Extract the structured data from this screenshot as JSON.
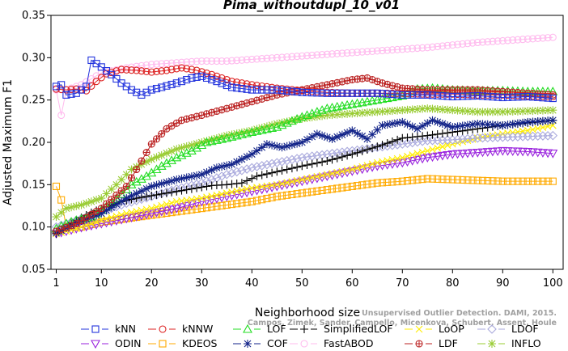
{
  "chart_data": {
    "type": "line",
    "title": "Pima_withoutdupl_10_v01",
    "xlabel": "Neighborhood size",
    "ylabel": "Adjusted Maximum F1",
    "xlim": [
      0,
      101
    ],
    "ylim": [
      0.05,
      0.35
    ],
    "xticks": [
      1,
      10,
      20,
      30,
      40,
      50,
      60,
      70,
      80,
      90,
      100
    ],
    "yticks": [
      0.05,
      0.1,
      0.15,
      0.2,
      0.25,
      0.3,
      0.35
    ],
    "ytick_labels": [
      "0.05",
      "0.10",
      "0.15",
      "0.20",
      "0.25",
      "0.30",
      "0.35"
    ],
    "grid": false,
    "legend_position": "bottom",
    "series": [
      {
        "name": "kNN",
        "color": "#2233dd",
        "marker": "square",
        "points": [
          [
            1,
            0.266
          ],
          [
            2,
            0.268
          ],
          [
            3,
            0.256
          ],
          [
            5,
            0.258
          ],
          [
            7,
            0.266
          ],
          [
            8,
            0.297
          ],
          [
            10,
            0.289
          ],
          [
            12,
            0.28
          ],
          [
            14,
            0.27
          ],
          [
            16,
            0.262
          ],
          [
            18,
            0.256
          ],
          [
            20,
            0.262
          ],
          [
            22,
            0.265
          ],
          [
            25,
            0.27
          ],
          [
            28,
            0.276
          ],
          [
            30,
            0.278
          ],
          [
            33,
            0.272
          ],
          [
            36,
            0.265
          ],
          [
            40,
            0.262
          ],
          [
            45,
            0.262
          ],
          [
            50,
            0.259
          ],
          [
            55,
            0.258
          ],
          [
            60,
            0.258
          ],
          [
            65,
            0.258
          ],
          [
            70,
            0.256
          ],
          [
            75,
            0.256
          ],
          [
            80,
            0.254
          ],
          [
            85,
            0.255
          ],
          [
            90,
            0.253
          ],
          [
            95,
            0.254
          ],
          [
            100,
            0.252
          ]
        ]
      },
      {
        "name": "kNNW",
        "color": "#dd2222",
        "marker": "circle",
        "points": [
          [
            1,
            0.263
          ],
          [
            3,
            0.262
          ],
          [
            5,
            0.263
          ],
          [
            7,
            0.261
          ],
          [
            9,
            0.272
          ],
          [
            11,
            0.281
          ],
          [
            14,
            0.286
          ],
          [
            17,
            0.285
          ],
          [
            20,
            0.283
          ],
          [
            23,
            0.285
          ],
          [
            26,
            0.288
          ],
          [
            29,
            0.285
          ],
          [
            32,
            0.28
          ],
          [
            36,
            0.272
          ],
          [
            40,
            0.268
          ],
          [
            45,
            0.264
          ],
          [
            50,
            0.261
          ],
          [
            55,
            0.259
          ],
          [
            60,
            0.258
          ],
          [
            65,
            0.258
          ],
          [
            70,
            0.258
          ],
          [
            75,
            0.257
          ],
          [
            80,
            0.257
          ],
          [
            85,
            0.256
          ],
          [
            90,
            0.256
          ],
          [
            95,
            0.255
          ],
          [
            100,
            0.254
          ]
        ]
      },
      {
        "name": "LOF",
        "color": "#22dd22",
        "marker": "triangle-up",
        "points": [
          [
            1,
            0.098
          ],
          [
            3,
            0.104
          ],
          [
            5,
            0.108
          ],
          [
            8,
            0.112
          ],
          [
            10,
            0.12
          ],
          [
            13,
            0.133
          ],
          [
            16,
            0.15
          ],
          [
            19,
            0.16
          ],
          [
            22,
            0.172
          ],
          [
            25,
            0.182
          ],
          [
            28,
            0.19
          ],
          [
            31,
            0.2
          ],
          [
            35,
            0.205
          ],
          [
            40,
            0.212
          ],
          [
            45,
            0.218
          ],
          [
            50,
            0.23
          ],
          [
            55,
            0.24
          ],
          [
            60,
            0.245
          ],
          [
            65,
            0.25
          ],
          [
            70,
            0.255
          ],
          [
            73,
            0.263
          ],
          [
            76,
            0.264
          ],
          [
            80,
            0.262
          ],
          [
            85,
            0.261
          ],
          [
            90,
            0.261
          ],
          [
            95,
            0.26
          ],
          [
            100,
            0.26
          ]
        ]
      },
      {
        "name": "SimplifiedLOF",
        "color": "#000000",
        "marker": "plus",
        "points": [
          [
            1,
            0.092
          ],
          [
            3,
            0.1
          ],
          [
            5,
            0.108
          ],
          [
            8,
            0.117
          ],
          [
            11,
            0.124
          ],
          [
            14,
            0.13
          ],
          [
            17,
            0.134
          ],
          [
            20,
            0.137
          ],
          [
            23,
            0.14
          ],
          [
            26,
            0.143
          ],
          [
            29,
            0.146
          ],
          [
            32,
            0.149
          ],
          [
            35,
            0.15
          ],
          [
            38,
            0.152
          ],
          [
            41,
            0.16
          ],
          [
            44,
            0.164
          ],
          [
            47,
            0.168
          ],
          [
            50,
            0.172
          ],
          [
            55,
            0.178
          ],
          [
            60,
            0.186
          ],
          [
            65,
            0.195
          ],
          [
            70,
            0.205
          ],
          [
            75,
            0.208
          ],
          [
            80,
            0.212
          ],
          [
            85,
            0.216
          ],
          [
            90,
            0.22
          ],
          [
            95,
            0.223
          ],
          [
            100,
            0.226
          ]
        ]
      },
      {
        "name": "LoOP",
        "color": "#ffee00",
        "marker": "x",
        "points": [
          [
            1,
            0.092
          ],
          [
            5,
            0.098
          ],
          [
            10,
            0.108
          ],
          [
            15,
            0.116
          ],
          [
            20,
            0.122
          ],
          [
            25,
            0.13
          ],
          [
            30,
            0.134
          ],
          [
            35,
            0.14
          ],
          [
            40,
            0.146
          ],
          [
            45,
            0.15
          ],
          [
            50,
            0.156
          ],
          [
            55,
            0.162
          ],
          [
            60,
            0.168
          ],
          [
            65,
            0.176
          ],
          [
            70,
            0.182
          ],
          [
            75,
            0.19
          ],
          [
            80,
            0.198
          ],
          [
            85,
            0.205
          ],
          [
            90,
            0.21
          ],
          [
            95,
            0.214
          ],
          [
            100,
            0.22
          ]
        ]
      },
      {
        "name": "LDOF",
        "color": "#aaaadd",
        "marker": "diamond",
        "points": [
          [
            1,
            0.1
          ],
          [
            5,
            0.108
          ],
          [
            10,
            0.118
          ],
          [
            15,
            0.128
          ],
          [
            20,
            0.136
          ],
          [
            25,
            0.145
          ],
          [
            30,
            0.152
          ],
          [
            35,
            0.162
          ],
          [
            40,
            0.17
          ],
          [
            45,
            0.176
          ],
          [
            50,
            0.182
          ],
          [
            55,
            0.186
          ],
          [
            60,
            0.19
          ],
          [
            65,
            0.194
          ],
          [
            70,
            0.198
          ],
          [
            75,
            0.202
          ],
          [
            80,
            0.203
          ],
          [
            85,
            0.205
          ],
          [
            90,
            0.206
          ],
          [
            95,
            0.207
          ],
          [
            100,
            0.208
          ]
        ]
      },
      {
        "name": "ODIN",
        "color": "#9922dd",
        "marker": "triangle-down",
        "points": [
          [
            1,
            0.092
          ],
          [
            5,
            0.098
          ],
          [
            10,
            0.104
          ],
          [
            15,
            0.11
          ],
          [
            20,
            0.116
          ],
          [
            25,
            0.122
          ],
          [
            30,
            0.13
          ],
          [
            35,
            0.136
          ],
          [
            40,
            0.142
          ],
          [
            45,
            0.148
          ],
          [
            50,
            0.154
          ],
          [
            55,
            0.16
          ],
          [
            60,
            0.166
          ],
          [
            65,
            0.172
          ],
          [
            70,
            0.176
          ],
          [
            75,
            0.182
          ],
          [
            80,
            0.186
          ],
          [
            85,
            0.188
          ],
          [
            90,
            0.19
          ],
          [
            95,
            0.189
          ],
          [
            100,
            0.187
          ]
        ]
      },
      {
        "name": "KDEOS",
        "color": "#ffaa00",
        "marker": "square",
        "points": [
          [
            1,
            0.148
          ],
          [
            2,
            0.132
          ],
          [
            3,
            0.1
          ],
          [
            6,
            0.1
          ],
          [
            10,
            0.106
          ],
          [
            15,
            0.11
          ],
          [
            20,
            0.114
          ],
          [
            25,
            0.118
          ],
          [
            30,
            0.122
          ],
          [
            35,
            0.126
          ],
          [
            40,
            0.13
          ],
          [
            45,
            0.136
          ],
          [
            50,
            0.14
          ],
          [
            55,
            0.144
          ],
          [
            60,
            0.148
          ],
          [
            65,
            0.152
          ],
          [
            70,
            0.154
          ],
          [
            75,
            0.157
          ],
          [
            80,
            0.156
          ],
          [
            85,
            0.155
          ],
          [
            90,
            0.154
          ],
          [
            95,
            0.154
          ],
          [
            100,
            0.154
          ]
        ]
      },
      {
        "name": "COF",
        "color": "#112288",
        "marker": "star",
        "points": [
          [
            1,
            0.093
          ],
          [
            5,
            0.105
          ],
          [
            10,
            0.116
          ],
          [
            15,
            0.134
          ],
          [
            20,
            0.148
          ],
          [
            25,
            0.156
          ],
          [
            30,
            0.162
          ],
          [
            33,
            0.17
          ],
          [
            36,
            0.174
          ],
          [
            40,
            0.186
          ],
          [
            43,
            0.198
          ],
          [
            46,
            0.194
          ],
          [
            50,
            0.2
          ],
          [
            53,
            0.21
          ],
          [
            56,
            0.204
          ],
          [
            60,
            0.214
          ],
          [
            63,
            0.204
          ],
          [
            66,
            0.22
          ],
          [
            70,
            0.224
          ],
          [
            73,
            0.216
          ],
          [
            76,
            0.226
          ],
          [
            80,
            0.218
          ],
          [
            85,
            0.222
          ],
          [
            90,
            0.22
          ],
          [
            95,
            0.224
          ],
          [
            100,
            0.226
          ]
        ]
      },
      {
        "name": "FastABOD",
        "color": "#ffbbee",
        "marker": "circle",
        "points": [
          [
            1,
            0.262
          ],
          [
            2,
            0.232
          ],
          [
            3,
            0.262
          ],
          [
            6,
            0.268
          ],
          [
            10,
            0.282
          ],
          [
            15,
            0.288
          ],
          [
            20,
            0.292
          ],
          [
            25,
            0.294
          ],
          [
            30,
            0.296
          ],
          [
            35,
            0.296
          ],
          [
            40,
            0.298
          ],
          [
            45,
            0.3
          ],
          [
            50,
            0.302
          ],
          [
            55,
            0.304
          ],
          [
            60,
            0.306
          ],
          [
            65,
            0.308
          ],
          [
            70,
            0.31
          ],
          [
            75,
            0.312
          ],
          [
            80,
            0.315
          ],
          [
            85,
            0.318
          ],
          [
            90,
            0.32
          ],
          [
            95,
            0.322
          ],
          [
            100,
            0.324
          ]
        ]
      },
      {
        "name": "LDF",
        "color": "#bb2222",
        "marker": "circle-cross",
        "points": [
          [
            1,
            0.095
          ],
          [
            5,
            0.104
          ],
          [
            10,
            0.122
          ],
          [
            15,
            0.148
          ],
          [
            18,
            0.178
          ],
          [
            20,
            0.198
          ],
          [
            23,
            0.216
          ],
          [
            26,
            0.226
          ],
          [
            30,
            0.232
          ],
          [
            35,
            0.24
          ],
          [
            40,
            0.248
          ],
          [
            45,
            0.256
          ],
          [
            50,
            0.262
          ],
          [
            55,
            0.268
          ],
          [
            60,
            0.274
          ],
          [
            63,
            0.276
          ],
          [
            66,
            0.27
          ],
          [
            70,
            0.264
          ],
          [
            75,
            0.262
          ],
          [
            80,
            0.262
          ],
          [
            85,
            0.262
          ],
          [
            90,
            0.26
          ],
          [
            95,
            0.258
          ],
          [
            100,
            0.256
          ]
        ]
      },
      {
        "name": "INFLO",
        "color": "#99cc33",
        "marker": "star",
        "points": [
          [
            1,
            0.112
          ],
          [
            3,
            0.122
          ],
          [
            6,
            0.126
          ],
          [
            10,
            0.134
          ],
          [
            13,
            0.15
          ],
          [
            16,
            0.168
          ],
          [
            20,
            0.18
          ],
          [
            25,
            0.192
          ],
          [
            30,
            0.2
          ],
          [
            35,
            0.208
          ],
          [
            40,
            0.214
          ],
          [
            45,
            0.222
          ],
          [
            50,
            0.228
          ],
          [
            55,
            0.232
          ],
          [
            60,
            0.234
          ],
          [
            65,
            0.236
          ],
          [
            70,
            0.238
          ],
          [
            75,
            0.24
          ],
          [
            80,
            0.238
          ],
          [
            85,
            0.236
          ],
          [
            90,
            0.236
          ],
          [
            95,
            0.237
          ],
          [
            100,
            0.238
          ]
        ]
      }
    ],
    "legend_rows": [
      [
        "kNN",
        "kNNW",
        "LOF",
        "SimplifiedLOF",
        "LoOP",
        "LDOF"
      ],
      [
        "ODIN",
        "KDEOS",
        "COF",
        "FastABOD",
        "LDF",
        "INFLO"
      ]
    ],
    "watermark": [
      "Campos, Zimek, Sander, Campello, Micenkova, Schubert, Assent, Houle",
      "Unsupervised Outlier Detection. DAMI, 2015."
    ]
  }
}
